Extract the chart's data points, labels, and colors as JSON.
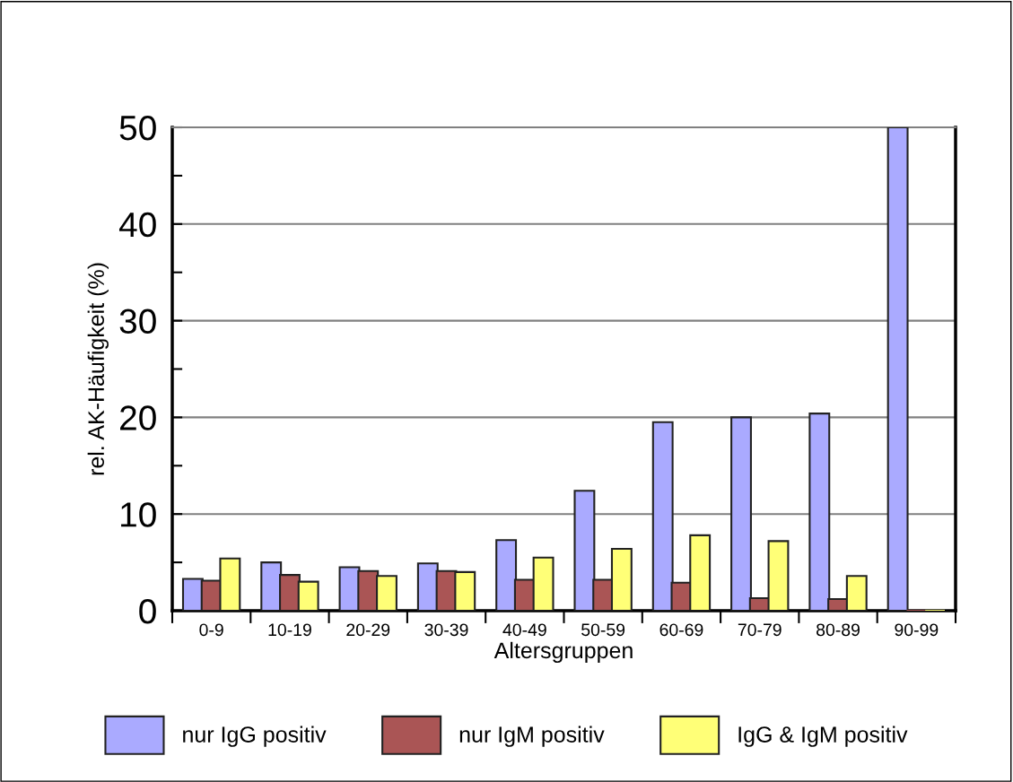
{
  "chart_data": {
    "type": "bar",
    "xlabel": "Altersgruppen",
    "ylabel": "rel. AK-Häufigkeit (%)",
    "categories": [
      "0-9",
      "10-19",
      "20-29",
      "30-39",
      "40-49",
      "50-59",
      "60-69",
      "70-79",
      "80-89",
      "90-99"
    ],
    "series": [
      {
        "name": "nur IgG positiv",
        "color": "#aaaaff",
        "values": [
          3.3,
          5.0,
          4.5,
          4.9,
          7.3,
          12.4,
          19.5,
          20.0,
          20.4,
          50
        ]
      },
      {
        "name": "nur IgM positiv",
        "color": "#aa5555",
        "values": [
          3.1,
          3.7,
          4.1,
          4.1,
          3.2,
          3.2,
          2.9,
          1.3,
          1.2,
          0
        ]
      },
      {
        "name": "IgG & IgM positiv",
        "color": "#ffff77",
        "values": [
          5.4,
          3.0,
          3.6,
          4.0,
          5.5,
          6.4,
          7.8,
          7.2,
          3.6,
          0
        ]
      }
    ],
    "ylim": [
      0,
      50
    ],
    "yticks": [
      0,
      10,
      20,
      30,
      40,
      50
    ],
    "grid": "y",
    "legend": "bottom"
  }
}
